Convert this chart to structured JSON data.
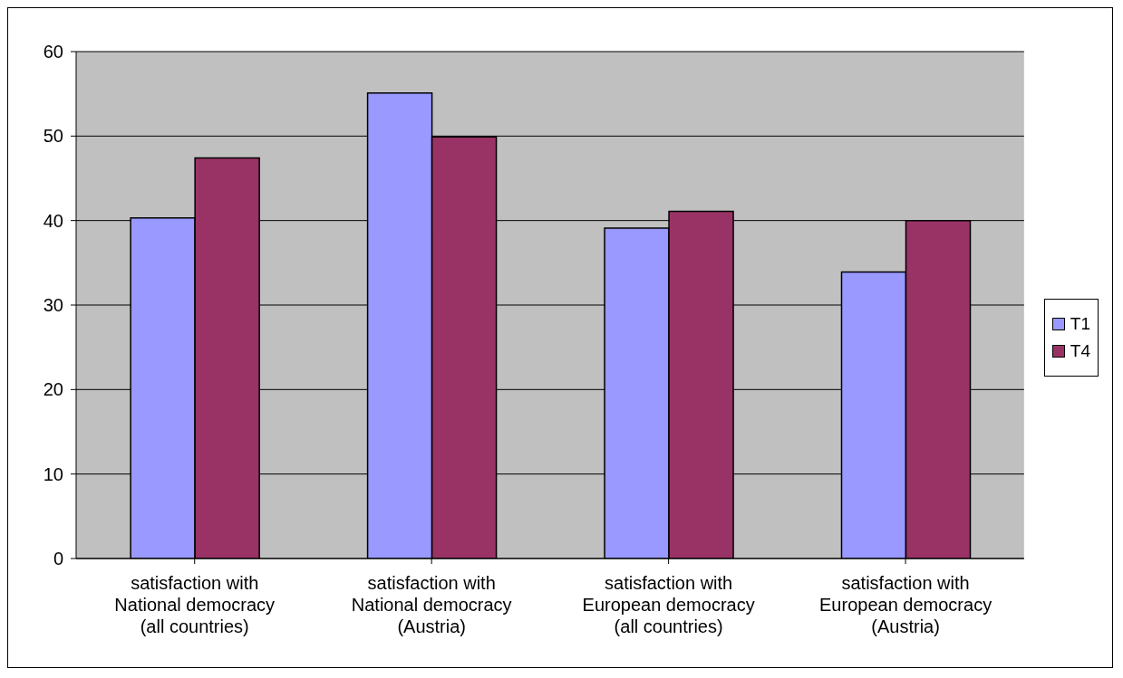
{
  "chart_data": {
    "type": "bar",
    "categories": [
      "satisfaction with\nNational democracy\n(all countries)",
      "satisfaction with\nNational democracy\n(Austria)",
      "satisfaction with\nEuropean democracy\n(all countries)",
      "satisfaction with\nEuropean democracy\n(Austria)"
    ],
    "series": [
      {
        "name": "T1",
        "color": "#9999ff",
        "values": [
          40.3,
          55.1,
          39.1,
          33.9
        ]
      },
      {
        "name": "T4",
        "color": "#993366",
        "values": [
          47.4,
          49.9,
          41.1,
          40.0
        ]
      }
    ],
    "ylim": [
      0,
      60
    ],
    "yticks": [
      0,
      10,
      20,
      30,
      40,
      50,
      60
    ],
    "grid": "y",
    "legend": "right"
  }
}
